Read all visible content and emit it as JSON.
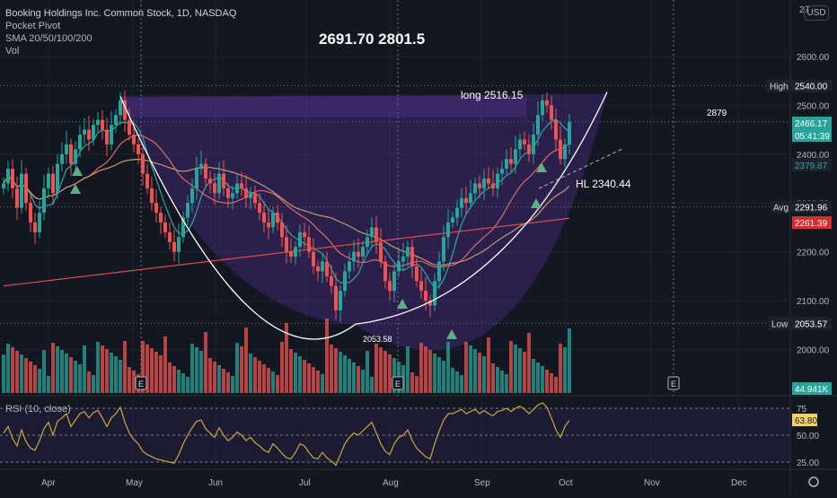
{
  "header": {
    "title": "Booking Holdings Inc. Common Stock, 1D, NASDAQ",
    "indicators": [
      "Pocket Pivot",
      "SMA 20/50/100/200",
      "Vol"
    ],
    "currency": "USD"
  },
  "annotations": {
    "top_note": "2691.70  2801.5",
    "long_note": "long 2516.15",
    "hl_note": "HL 2340.44",
    "right_note": "2879",
    "bottom_note": "2053.58"
  },
  "price_tags": {
    "high_label": "High",
    "high_value": "2540.00",
    "last_value": "2466.17",
    "countdown": "05:41:39",
    "teal_value": "2379.87",
    "avg_label": "Avg",
    "avg_value": "2291.96",
    "red_value": "2261.39",
    "low_label": "Low",
    "low_value": "2053.57",
    "volume_value": "44.941K",
    "rsi_value": "63.80"
  },
  "rsi_panel": {
    "label": "RSI (10, close)"
  },
  "earnings_marker": "E",
  "chart_data": {
    "type": "candlestick",
    "price_axis": {
      "ylim": [
        1960,
        2740
      ],
      "ticks": [
        2000,
        2100,
        2200,
        2300,
        2400,
        2500,
        2600
      ],
      "tick_labels": [
        "2000.00",
        "2100.00",
        "2200.00",
        "2300.00",
        "2400.00",
        "2500.00",
        "2600.00"
      ],
      "top_cut_label": "27"
    },
    "rsi_axis": {
      "ylim": [
        20,
        80
      ],
      "ticks": [
        75,
        50,
        25
      ],
      "tick_labels": [
        "75",
        "50.00",
        "25.00"
      ]
    },
    "x_axis": {
      "labels": [
        "Apr",
        "May",
        "Jun",
        "Jul",
        "Aug",
        "Sep",
        "Oct",
        "Nov",
        "Dec"
      ]
    },
    "cup_anchor_points": [
      {
        "date": "Apr 28",
        "price": 2516.15
      },
      {
        "date": "Jul 29",
        "price": 2053.58
      },
      {
        "date": "Oct 12",
        "price": 2540.0
      }
    ],
    "resistance_level": 2516.15,
    "high_level": 2540.0,
    "avg_level": 2291.96,
    "low_level": 2053.57,
    "last_price": 2466.17,
    "sma_levels_last": [
      2379.87,
      2291.96,
      2261.39
    ],
    "rsi_last": 63.8,
    "volume_last": "44.941K",
    "candles_close": [
      2340,
      2370,
      2330,
      2290,
      2360,
      2300,
      2260,
      2240,
      2280,
      2330,
      2360,
      2320,
      2380,
      2400,
      2420,
      2380,
      2410,
      2440,
      2450,
      2430,
      2460,
      2470,
      2450,
      2420,
      2460,
      2480,
      2510,
      2470,
      2440,
      2420,
      2400,
      2360,
      2330,
      2300,
      2280,
      2260,
      2240,
      2220,
      2200,
      2230,
      2270,
      2300,
      2330,
      2370,
      2380,
      2350,
      2340,
      2320,
      2360,
      2330,
      2310,
      2320,
      2340,
      2330,
      2310,
      2320,
      2300,
      2280,
      2260,
      2250,
      2280,
      2260,
      2230,
      2200,
      2190,
      2210,
      2240,
      2230,
      2200,
      2170,
      2160,
      2180,
      2150,
      2130,
      2080,
      2120,
      2160,
      2180,
      2200,
      2190,
      2210,
      2230,
      2250,
      2220,
      2180,
      2140,
      2120,
      2160,
      2180,
      2190,
      2210,
      2170,
      2140,
      2120,
      2100,
      2090,
      2140,
      2180,
      2230,
      2260,
      2270,
      2290,
      2310,
      2300,
      2320,
      2340,
      2330,
      2350,
      2340,
      2330,
      2360,
      2370,
      2390,
      2380,
      2410,
      2430,
      2420,
      2400,
      2440,
      2480,
      2510,
      2500,
      2470,
      2430,
      2390,
      2420,
      2466.17
    ],
    "rsi_values": [
      52,
      58,
      47,
      40,
      55,
      44,
      38,
      36,
      45,
      56,
      62,
      50,
      63,
      66,
      70,
      58,
      64,
      70,
      72,
      66,
      71,
      73,
      66,
      58,
      66,
      70,
      76,
      62,
      52,
      46,
      42,
      35,
      32,
      30,
      28,
      27,
      26,
      25,
      24,
      32,
      42,
      50,
      57,
      63,
      64,
      56,
      52,
      48,
      57,
      50,
      45,
      48,
      53,
      50,
      45,
      48,
      43,
      40,
      36,
      34,
      42,
      38,
      33,
      29,
      28,
      34,
      42,
      40,
      34,
      29,
      28,
      34,
      29,
      26,
      22,
      32,
      42,
      48,
      52,
      50,
      54,
      58,
      62,
      52,
      42,
      35,
      32,
      42,
      48,
      50,
      55,
      45,
      38,
      34,
      30,
      28,
      42,
      54,
      64,
      70,
      70,
      72,
      74,
      70,
      72,
      74,
      70,
      73,
      70,
      68,
      72,
      73,
      75,
      72,
      75,
      77,
      74,
      70,
      74,
      78,
      80,
      76,
      66,
      55,
      48,
      58,
      63.8
    ]
  }
}
